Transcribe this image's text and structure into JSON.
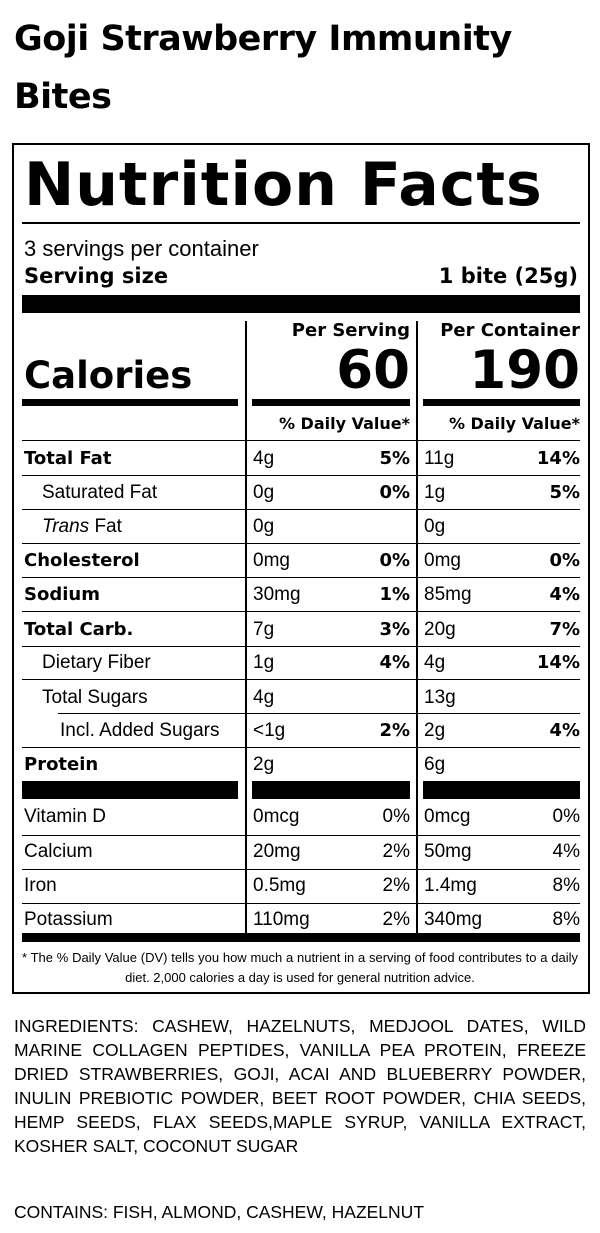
{
  "product_title": "Goji Strawberry Immunity Bites",
  "label": {
    "heading": "Nutrition Facts",
    "servings_per_container": "3 servings per container",
    "serving_size_label": "Serving size",
    "serving_size_value": "1 bite (25g)",
    "per_serving_header": "Per Serving",
    "per_container_header": "Per Container",
    "calories_label": "Calories",
    "calories_per_serving": "60",
    "calories_per_container": "190",
    "daily_value_header": "% Daily Value*",
    "nutrients": [
      {
        "label": "Total Fat",
        "serving_amount": "4g",
        "serving_dv": "5%",
        "container_amount": "11g",
        "container_dv": "14%"
      },
      {
        "label": "Saturated Fat",
        "serving_amount": "0g",
        "serving_dv": "0%",
        "container_amount": "1g",
        "container_dv": "5%"
      },
      {
        "label_italic": "Trans",
        "label_rest": " Fat",
        "serving_amount": "0g",
        "serving_dv": "",
        "container_amount": "0g",
        "container_dv": ""
      },
      {
        "label": "Cholesterol",
        "serving_amount": "0mg",
        "serving_dv": "0%",
        "container_amount": "0mg",
        "container_dv": "0%"
      },
      {
        "label": "Sodium",
        "serving_amount": "30mg",
        "serving_dv": "1%",
        "container_amount": "85mg",
        "container_dv": "4%"
      },
      {
        "label": "Total Carb.",
        "serving_amount": "7g",
        "serving_dv": "3%",
        "container_amount": "20g",
        "container_dv": "7%"
      },
      {
        "label": "Dietary Fiber",
        "serving_amount": "1g",
        "serving_dv": "4%",
        "container_amount": "4g",
        "container_dv": "14%"
      },
      {
        "label": "Total Sugars",
        "serving_amount": "4g",
        "serving_dv": "",
        "container_amount": "13g",
        "container_dv": ""
      },
      {
        "label": "Incl. Added Sugars",
        "serving_amount": "<1g",
        "serving_dv": "2%",
        "container_amount": "2g",
        "container_dv": "4%"
      },
      {
        "label": "Protein",
        "serving_amount": "2g",
        "serving_dv": "",
        "container_amount": "6g",
        "container_dv": ""
      }
    ],
    "vitamins": [
      {
        "label": "Vitamin D",
        "serving_amount": "0mcg",
        "serving_dv": "0%",
        "container_amount": "0mcg",
        "container_dv": "0%"
      },
      {
        "label": "Calcium",
        "serving_amount": "20mg",
        "serving_dv": "2%",
        "container_amount": "50mg",
        "container_dv": "4%"
      },
      {
        "label": "Iron",
        "serving_amount": "0.5mg",
        "serving_dv": "2%",
        "container_amount": "1.4mg",
        "container_dv": "8%"
      },
      {
        "label": "Potassium",
        "serving_amount": "110mg",
        "serving_dv": "2%",
        "container_amount": "340mg",
        "container_dv": "8%"
      }
    ],
    "footnote": "* The % Daily Value (DV) tells you how much a nutrient in a serving of food contributes to a daily diet. 2,000 calories a day is used for general nutrition advice."
  },
  "ingredients": "INGREDIENTS: CASHEW, HAZELNUTS, MEDJOOL DATES, WILD MARINE COLLAGEN PEPTIDES, VANILLA PEA PROTEIN, FREEZE DRIED STRAWBERRIES, GOJI, ACAI AND BLUEBERRY POWDER, INULIN PREBIOTIC POWDER, BEET ROOT POWDER, CHIA SEEDS, HEMP SEEDS, FLAX SEEDS,MAPLE SYRUP, VANILLA EXTRACT, KOSHER SALT, COCONUT SUGAR",
  "contains": "CONTAINS: FISH, ALMOND, CASHEW, HAZELNUT"
}
